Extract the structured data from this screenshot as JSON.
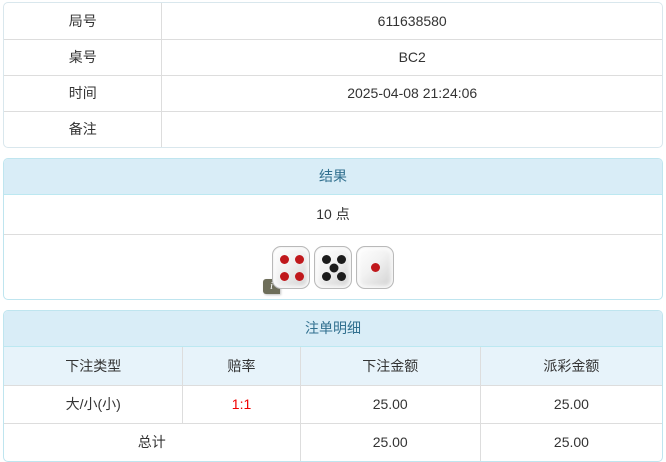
{
  "info_table": {
    "rows": [
      {
        "label": "局号",
        "value": "611638580"
      },
      {
        "label": "桌号",
        "value": "BC2"
      },
      {
        "label": "时间",
        "value": "2025-04-08 21:24:06"
      },
      {
        "label": "备注",
        "value": ""
      }
    ]
  },
  "result_panel": {
    "title": "结果",
    "points": "10 点",
    "dice": [
      {
        "value": 4,
        "color": "red",
        "class": "die p4 red"
      },
      {
        "value": 5,
        "color": "black",
        "class": "die p5 black"
      },
      {
        "value": 1,
        "color": "red",
        "class": "die p1 red"
      }
    ],
    "info_icon": "i"
  },
  "bets_panel": {
    "title": "注单明细",
    "columns": [
      "下注类型",
      "赔率",
      "下注金额",
      "派彩金额"
    ],
    "rows": [
      {
        "type": "大/小(小)",
        "odds": "1:1",
        "bet": "25.00",
        "payout": "25.00"
      }
    ],
    "total": {
      "label": "总计",
      "bet": "25.00",
      "payout": "25.00"
    }
  },
  "colors": {
    "panel_header_bg": "#d9edf7",
    "panel_header_text": "#31708f",
    "panel_border": "#bce8f1",
    "table_subheader_bg": "#e7f3fa",
    "odds_red": "#f00000",
    "cell_border": "#dddddd",
    "die_pip_red": "#c0181c",
    "die_pip_black": "#1c1c1c"
  }
}
